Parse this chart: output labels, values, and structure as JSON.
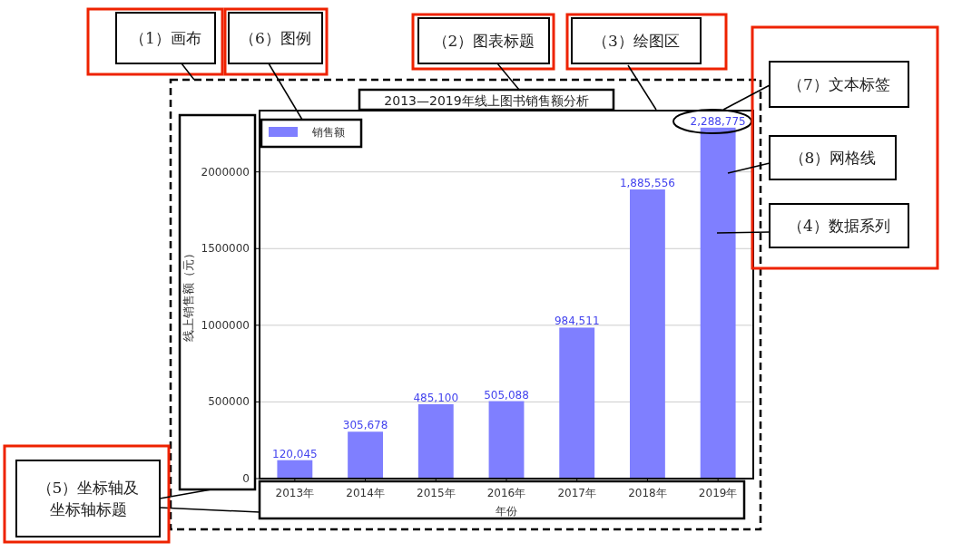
{
  "chart_data": {
    "type": "bar",
    "title": "2013—2019年线上图书销售额分析",
    "xlabel": "年份",
    "ylabel": "线上销售额（元）",
    "categories": [
      "2013年",
      "2014年",
      "2015年",
      "2016年",
      "2017年",
      "2018年",
      "2019年"
    ],
    "series": [
      {
        "name": "销售额",
        "color": "#7f7fff",
        "values": [
          120045,
          305678,
          485100,
          505088,
          984511,
          1885556,
          2288775
        ],
        "value_labels": [
          "120,045",
          "305,678",
          "485,100",
          "505,088",
          "984,511",
          "1,885,556",
          "2,288,775"
        ]
      }
    ],
    "ylim": [
      0,
      2400000
    ],
    "yticks": [
      0,
      500000,
      1000000,
      1500000,
      2000000
    ],
    "grid": "y",
    "legend": "top left",
    "annotations": [
      "（1）画布",
      "（6）图例",
      "（2）图表标题",
      "（3）绘图区",
      "（7）文本标签",
      "（8）网格线",
      "（4）数据系列",
      "（5）坐标轴及坐标轴标题"
    ]
  }
}
